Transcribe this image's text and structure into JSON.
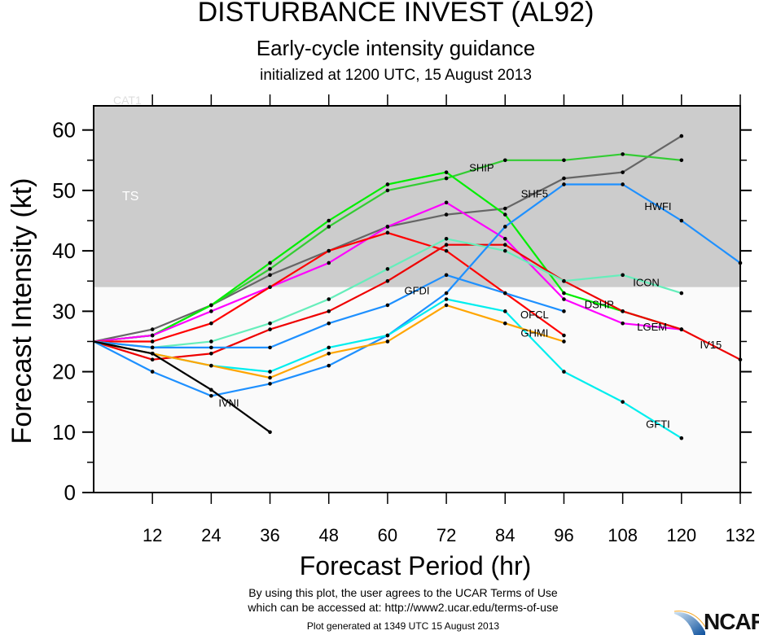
{
  "chart_data": {
    "type": "line",
    "title": "DISTURBANCE INVEST (AL92)",
    "subtitle": "Early-cycle intensity guidance",
    "subtitle2": "initialized at 1200 UTC, 15 August 2013",
    "xlabel": "Forecast Period (hr)",
    "ylabel": "Forecast Intensity (kt)",
    "xlim": [
      0,
      132
    ],
    "ylim": [
      0,
      64
    ],
    "x_ticks": [
      12,
      24,
      36,
      48,
      60,
      72,
      84,
      96,
      108,
      120,
      132
    ],
    "y_ticks": [
      0,
      10,
      20,
      30,
      40,
      50,
      60
    ],
    "bands": [
      {
        "label": "TS",
        "from": 34,
        "to": 64,
        "color": "#cccccc"
      },
      {
        "label": "CAT1",
        "from": 64,
        "to": 83,
        "color": "#cccccc"
      }
    ],
    "series": [
      {
        "name": "SHF5",
        "color": "#666666",
        "x": [
          0,
          12,
          24,
          36,
          48,
          60,
          72,
          84,
          96,
          108,
          120
        ],
        "y": [
          25,
          27,
          31,
          36,
          40,
          44,
          46,
          47,
          52,
          53,
          59
        ]
      },
      {
        "name": "SHIP",
        "color": "#33cc33",
        "x": [
          0,
          12,
          24,
          36,
          48,
          60,
          72,
          84,
          96,
          108,
          120
        ],
        "y": [
          25,
          26,
          31,
          37,
          44,
          50,
          52,
          55,
          55,
          56,
          55
        ]
      },
      {
        "name": "DSHP",
        "color": "#00ee00",
        "x": [
          0,
          12,
          24,
          36,
          48,
          60,
          72,
          84,
          96,
          108,
          120
        ],
        "y": [
          25,
          26,
          31,
          38,
          45,
          51,
          53,
          46,
          33,
          30,
          27
        ]
      },
      {
        "name": "LGEM",
        "color": "#ff00ff",
        "x": [
          0,
          12,
          24,
          36,
          48,
          60,
          72,
          84,
          96,
          108,
          120
        ],
        "y": [
          25,
          26,
          30,
          34,
          38,
          44,
          48,
          42,
          32,
          28,
          27
        ]
      },
      {
        "name": "OFCL",
        "color": "#ff0000",
        "x": [
          0,
          12,
          24,
          36,
          48,
          60,
          72,
          84,
          96
        ],
        "y": [
          25,
          25,
          28,
          34,
          40,
          43,
          40,
          33,
          26
        ]
      },
      {
        "name": "IV15",
        "color": "#ee0000",
        "x": [
          0,
          12,
          24,
          36,
          48,
          60,
          72,
          84,
          96,
          108,
          120,
          132
        ],
        "y": [
          25,
          22,
          23,
          27,
          30,
          35,
          41,
          41,
          35,
          30,
          27,
          22
        ]
      },
      {
        "name": "ICON",
        "color": "#66eebb",
        "x": [
          0,
          12,
          24,
          36,
          48,
          60,
          72,
          84,
          96,
          108,
          120
        ],
        "y": [
          25,
          24,
          25,
          28,
          32,
          37,
          42,
          40,
          35,
          36,
          33
        ]
      },
      {
        "name": "GFDI",
        "color": "#1e90ff",
        "x": [
          0,
          12,
          24,
          36,
          48,
          60,
          72,
          84,
          96
        ],
        "y": [
          25,
          24,
          24,
          24,
          28,
          31,
          36,
          33,
          30
        ]
      },
      {
        "name": "HWFI",
        "color": "#1e90ff",
        "x": [
          0,
          12,
          24,
          36,
          48,
          60,
          72,
          84,
          96,
          108,
          120,
          132
        ],
        "y": [
          25,
          20,
          16,
          18,
          21,
          26,
          33,
          44,
          51,
          51,
          45,
          38
        ]
      },
      {
        "name": "GFTI",
        "color": "#00eeee",
        "x": [
          0,
          12,
          24,
          36,
          48,
          60,
          72,
          84,
          96,
          108,
          120
        ],
        "y": [
          25,
          23,
          21,
          20,
          24,
          26,
          32,
          30,
          20,
          15,
          9
        ]
      },
      {
        "name": "GHMI",
        "color": "#ffa500",
        "x": [
          0,
          12,
          24,
          36,
          48,
          60,
          72,
          84,
          96
        ],
        "y": [
          25,
          23,
          21,
          19,
          23,
          25,
          31,
          28,
          25
        ]
      },
      {
        "name": "IVNI",
        "color": "#000000",
        "x": [
          0,
          12,
          24,
          36
        ],
        "y": [
          25,
          23,
          17,
          10
        ]
      }
    ]
  },
  "footer": {
    "line1": "By using this plot, the user agrees to the UCAR Terms of Use",
    "line2": "which can be accessed at: http://www2.ucar.edu/terms-of-use",
    "generated": "Plot generated at 1349 UTC   15 August 2013"
  },
  "logo": {
    "text": "NCAR"
  }
}
